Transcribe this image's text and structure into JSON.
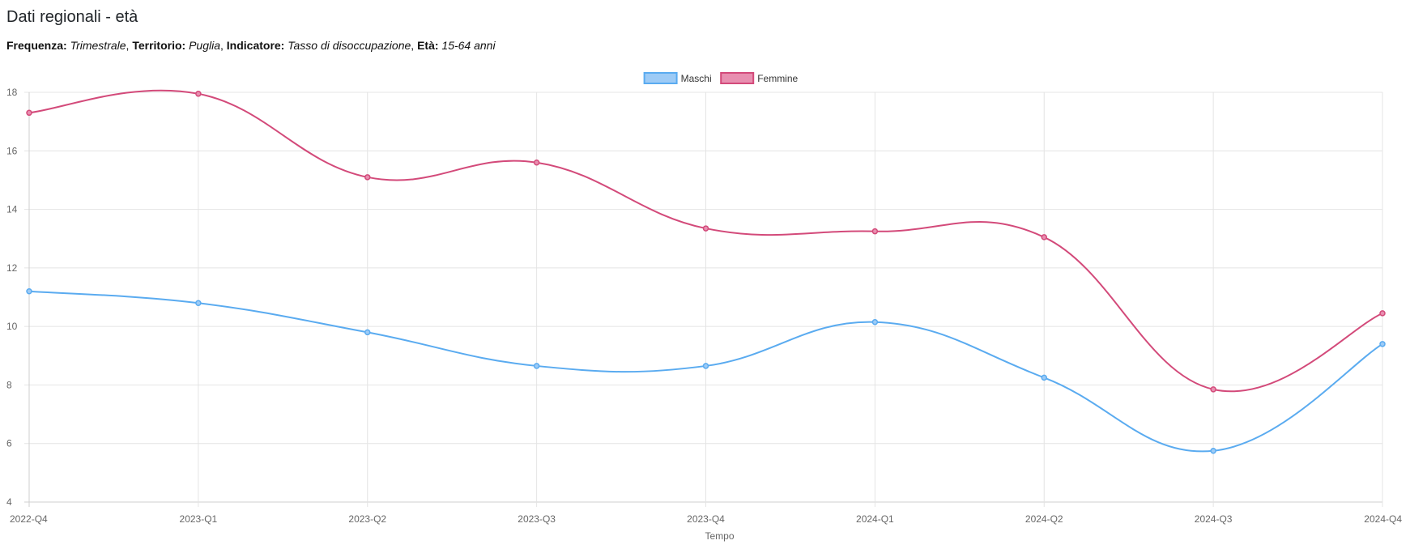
{
  "header": {
    "title": "Dati regionali - età"
  },
  "filters": {
    "frequency_label": "Frequenza:",
    "frequency_value": "Trimestrale",
    "territory_label": "Territorio:",
    "territory_value": "Puglia",
    "indicator_label": "Indicatore:",
    "indicator_value": "Tasso di disoccupazione",
    "age_label": "Età:",
    "age_value": "15-64 anni"
  },
  "chart_data": {
    "type": "line",
    "title": "",
    "xlabel": "Tempo",
    "ylabel": "",
    "categories": [
      "2022-Q4",
      "2023-Q1",
      "2023-Q2",
      "2023-Q3",
      "2023-Q4",
      "2024-Q1",
      "2024-Q2",
      "2024-Q3",
      "2024-Q4"
    ],
    "ylim": [
      4,
      18
    ],
    "yticks": [
      4,
      6,
      8,
      10,
      12,
      14,
      16,
      18
    ],
    "grid": true,
    "legend_position": "top-center",
    "series": [
      {
        "name": "Maschi",
        "color": "#5aabf0",
        "fill": "#9dcbf6",
        "values": [
          11.2,
          10.8,
          9.8,
          8.65,
          8.65,
          10.15,
          8.25,
          5.75,
          9.4
        ]
      },
      {
        "name": "Femmine",
        "color": "#d34a7a",
        "fill": "#e88fb0",
        "values": [
          17.3,
          17.95,
          15.1,
          15.6,
          13.35,
          13.25,
          13.05,
          7.85,
          10.45
        ]
      }
    ]
  }
}
